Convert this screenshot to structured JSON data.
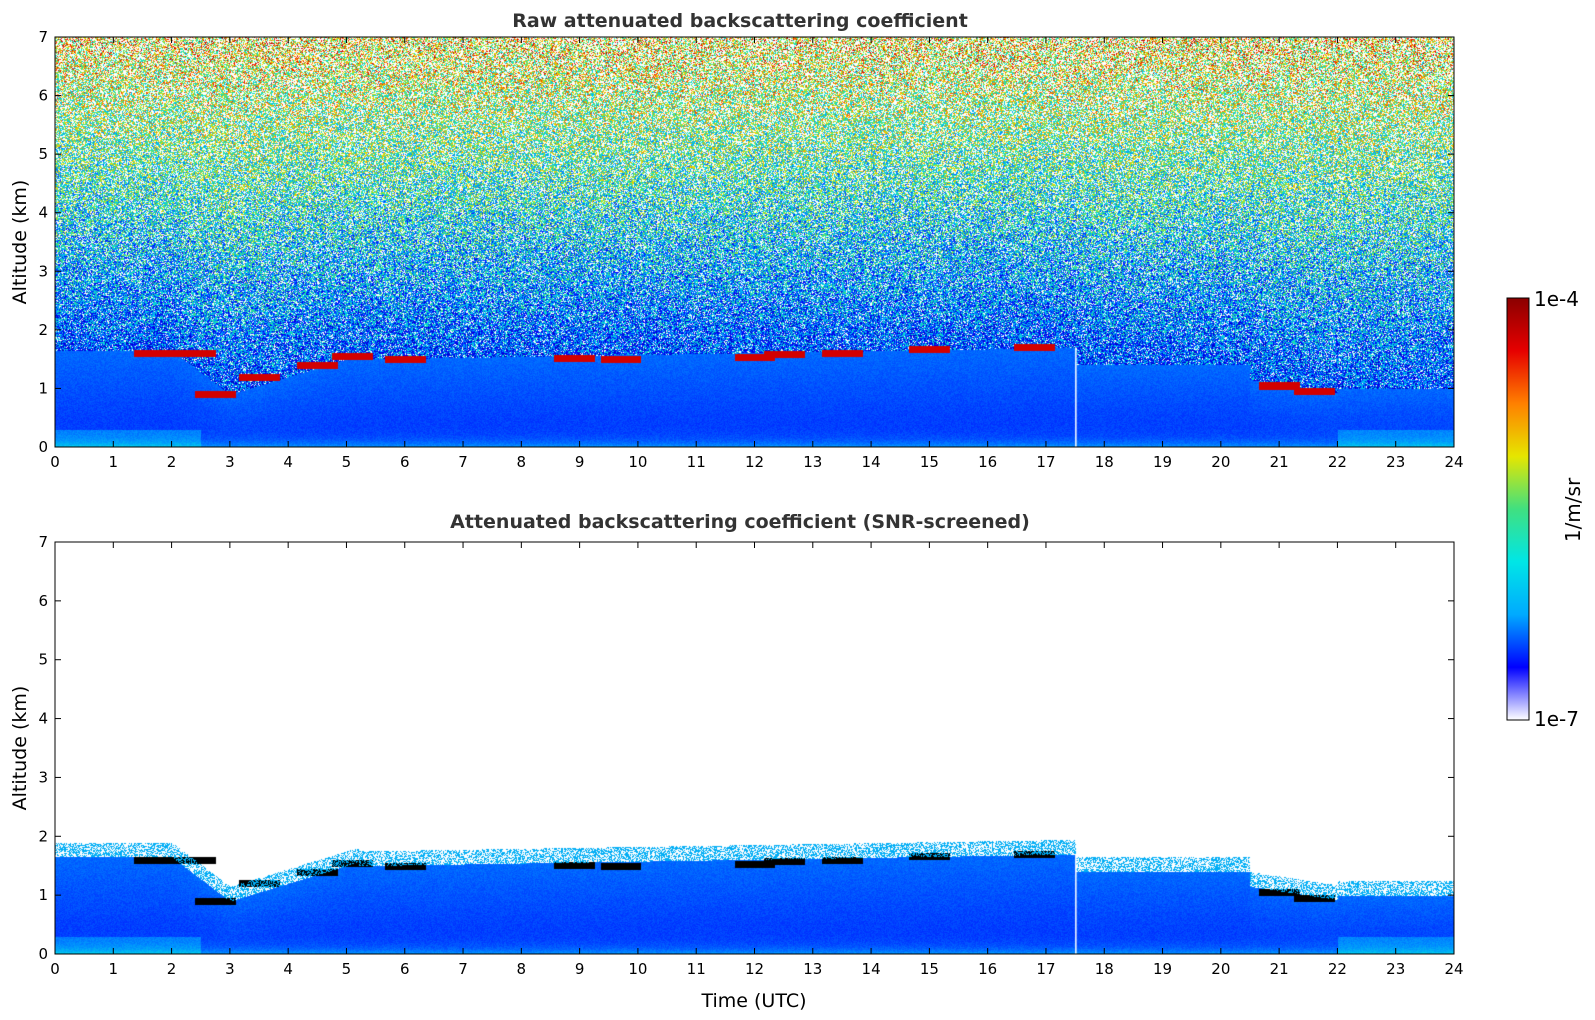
{
  "chart_data": [
    {
      "type": "heatmap",
      "title": "Raw attenuated backscattering coefficient",
      "xlabel": "",
      "ylabel": "Altitude (km)",
      "xlim": [
        0,
        24
      ],
      "ylim": [
        0,
        7
      ],
      "xticks": [
        "0",
        "1",
        "2",
        "3",
        "4",
        "5",
        "6",
        "7",
        "8",
        "9",
        "10",
        "11",
        "12",
        "13",
        "14",
        "15",
        "16",
        "17",
        "18",
        "19",
        "20",
        "21",
        "22",
        "23",
        "24"
      ],
      "yticks": [
        "0",
        "1",
        "2",
        "3",
        "4",
        "5",
        "6",
        "7"
      ],
      "screened": false,
      "cloud_layer": [
        {
          "x": 1.7,
          "y": 1.6
        },
        {
          "x": 2.4,
          "y": 1.6
        },
        {
          "x": 2.75,
          "y": 0.9
        },
        {
          "x": 3.5,
          "y": 1.2
        },
        {
          "x": 4.5,
          "y": 1.4
        },
        {
          "x": 5.1,
          "y": 1.55
        },
        {
          "x": 6.0,
          "y": 1.5
        },
        {
          "x": 8.9,
          "y": 1.52
        },
        {
          "x": 9.7,
          "y": 1.5
        },
        {
          "x": 12.0,
          "y": 1.53
        },
        {
          "x": 12.5,
          "y": 1.58
        },
        {
          "x": 13.5,
          "y": 1.6
        },
        {
          "x": 15.0,
          "y": 1.67
        },
        {
          "x": 16.8,
          "y": 1.7
        },
        {
          "x": 21.0,
          "y": 1.05
        },
        {
          "x": 21.6,
          "y": 0.95
        }
      ]
    },
    {
      "type": "heatmap",
      "title": "Attenuated backscattering coefficient (SNR-screened)",
      "xlabel": "Time (UTC)",
      "ylabel": "Altitude (km)",
      "xlim": [
        0,
        24
      ],
      "ylim": [
        0,
        7
      ],
      "xticks": [
        "0",
        "1",
        "2",
        "3",
        "4",
        "5",
        "6",
        "7",
        "8",
        "9",
        "10",
        "11",
        "12",
        "13",
        "14",
        "15",
        "16",
        "17",
        "18",
        "19",
        "20",
        "21",
        "22",
        "23",
        "24"
      ],
      "yticks": [
        "0",
        "1",
        "2",
        "3",
        "4",
        "5",
        "6",
        "7"
      ],
      "screened": true
    }
  ],
  "colorbar": {
    "min_label": "1e-7",
    "max_label": "1e-4",
    "label": "1/m/sr",
    "scale": "log",
    "colormap": [
      "#ffffff",
      "#0000ff",
      "#00aaff",
      "#00e6e6",
      "#40e080",
      "#e6e600",
      "#ff8000",
      "#e60000",
      "#8b0000"
    ]
  }
}
